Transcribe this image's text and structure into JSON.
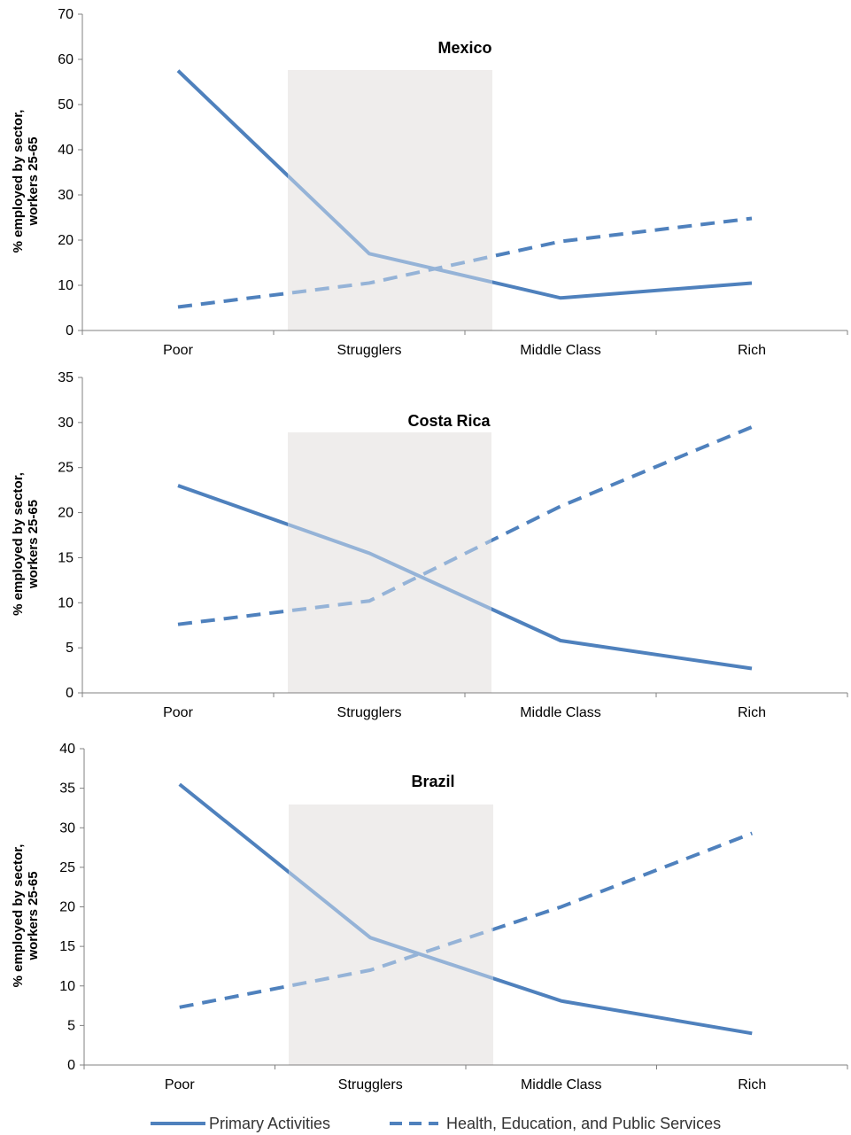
{
  "chart_data": [
    {
      "type": "line",
      "title": "Mexico",
      "ylabel_line1": "% employed by sector,",
      "ylabel_line2": "workers 25-65",
      "categories": [
        "Poor",
        "Strugglers",
        "Middle Class",
        "Rich"
      ],
      "ylim": [
        0,
        70
      ],
      "yticks": [
        0,
        10,
        20,
        30,
        40,
        50,
        60,
        70
      ],
      "shaded_category": "Strugglers",
      "series": [
        {
          "name": "Primary Activities",
          "style": "solid",
          "values": [
            57.5,
            17,
            7.2,
            10.5
          ]
        },
        {
          "name": "Health, Education, and Public Services",
          "style": "dashed",
          "values": [
            5.2,
            10.5,
            19.7,
            24.8
          ]
        }
      ]
    },
    {
      "type": "line",
      "title": "Costa Rica",
      "ylabel_line1": "% employed by sector,",
      "ylabel_line2": "workers 25-65",
      "categories": [
        "Poor",
        "Strugglers",
        "Middle Class",
        "Rich"
      ],
      "ylim": [
        0,
        35
      ],
      "yticks": [
        0,
        5,
        10,
        15,
        20,
        25,
        30,
        35
      ],
      "shaded_category": "Strugglers",
      "series": [
        {
          "name": "Primary Activities",
          "style": "solid",
          "values": [
            23,
            15.5,
            5.8,
            2.7
          ]
        },
        {
          "name": "Health, Education, and Public Services",
          "style": "dashed",
          "values": [
            7.6,
            10.2,
            20.7,
            29.5
          ]
        }
      ]
    },
    {
      "type": "line",
      "title": "Brazil",
      "ylabel_line1": "% employed by sector,",
      "ylabel_line2": "workers 25-65",
      "categories": [
        "Poor",
        "Strugglers",
        "Middle Class",
        "Rich"
      ],
      "ylim": [
        0,
        40
      ],
      "yticks": [
        0,
        5,
        10,
        15,
        20,
        25,
        30,
        35,
        40
      ],
      "shaded_category": "Strugglers",
      "series": [
        {
          "name": "Primary Activities",
          "style": "solid",
          "values": [
            35.5,
            16.1,
            8.1,
            4.0
          ]
        },
        {
          "name": "Health, Education, and Public Services",
          "style": "dashed",
          "values": [
            7.3,
            12.0,
            20.0,
            29.3
          ]
        }
      ]
    }
  ],
  "legend": {
    "items": [
      {
        "label": "Primary Activities",
        "style": "solid"
      },
      {
        "label": "Health, Education, and Public Services",
        "style": "dashed"
      }
    ]
  },
  "colors": {
    "series": "#4f81bd",
    "series_in_shade": "#95b3d7",
    "shade": "#efedec",
    "axis": "#808080"
  }
}
